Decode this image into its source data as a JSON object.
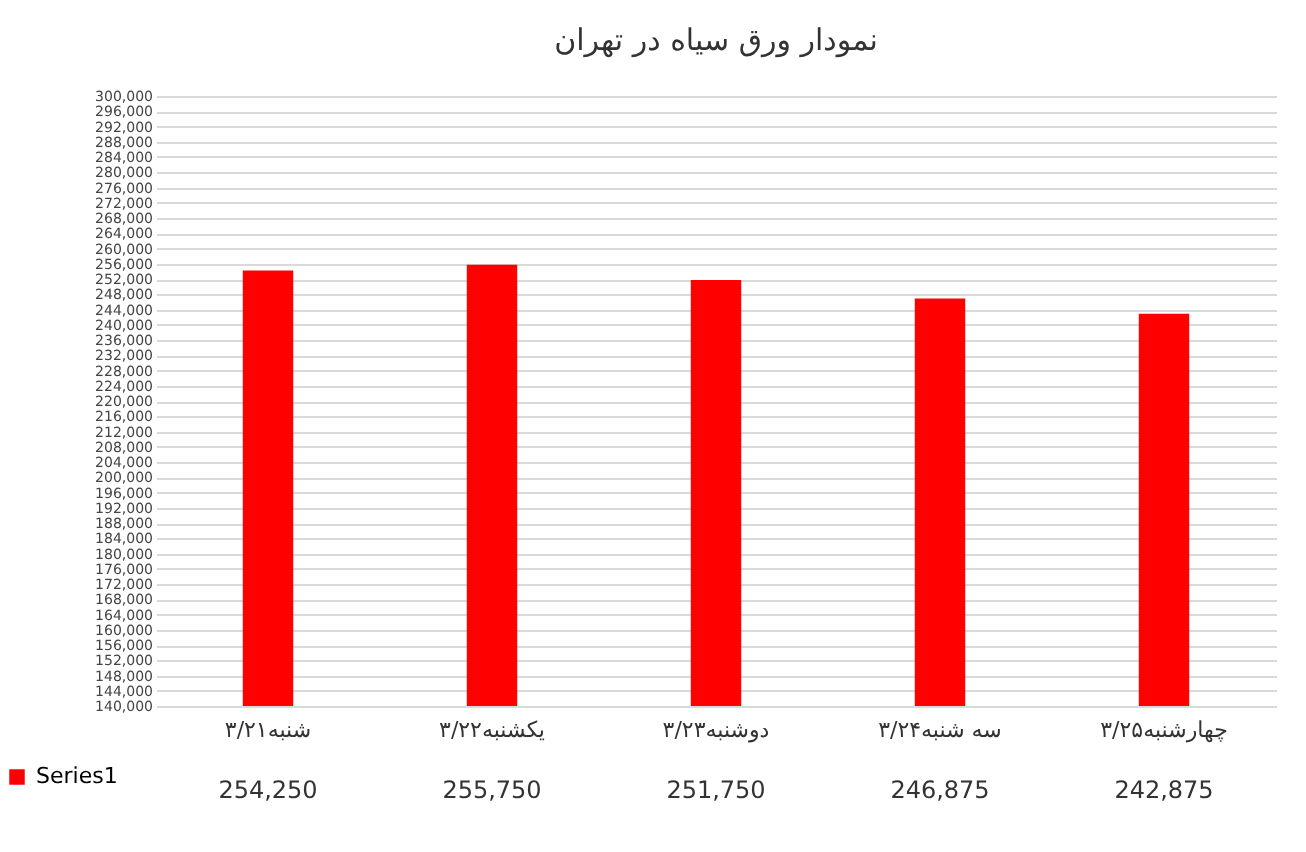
{
  "chart_data": {
    "type": "bar",
    "title": "نمودار ورق سیاه در تهران",
    "categories": [
      "شنبه۳/۲۱",
      "یکشنبه۳/۲۲",
      "دوشنبه۳/۲۳",
      "سه شنبه۳/۲۴",
      "چهارشنبه۳/۲۵"
    ],
    "series": [
      {
        "name": "Series1",
        "color": "#ff0000",
        "values": [
          254250,
          255750,
          251750,
          246875,
          242875
        ],
        "value_labels": [
          "254,250",
          "255,750",
          "251,750",
          "246,875",
          "242,875"
        ]
      }
    ],
    "ylim": [
      140000,
      300000
    ],
    "yticks": [
      {
        "value": 140000,
        "label": "140,000"
      },
      {
        "value": 144000,
        "label": "144,000"
      },
      {
        "value": 148000,
        "label": "148,000"
      },
      {
        "value": 152000,
        "label": "152,000"
      },
      {
        "value": 156000,
        "label": "156,000"
      },
      {
        "value": 160000,
        "label": "160,000"
      },
      {
        "value": 164000,
        "label": "164,000"
      },
      {
        "value": 168000,
        "label": "168,000"
      },
      {
        "value": 172000,
        "label": "172,000"
      },
      {
        "value": 176000,
        "label": "176,000"
      },
      {
        "value": 180000,
        "label": "180,000"
      },
      {
        "value": 184000,
        "label": "184,000"
      },
      {
        "value": 188000,
        "label": "188,000"
      },
      {
        "value": 192000,
        "label": "192,000"
      },
      {
        "value": 196000,
        "label": "196,000"
      },
      {
        "value": 200000,
        "label": "200,000"
      },
      {
        "value": 204000,
        "label": "204,000"
      },
      {
        "value": 208000,
        "label": "208,000"
      },
      {
        "value": 212000,
        "label": "212,000"
      },
      {
        "value": 216000,
        "label": "216,000"
      },
      {
        "value": 220000,
        "label": "220,000"
      },
      {
        "value": 224000,
        "label": "224,000"
      },
      {
        "value": 228000,
        "label": "228,000"
      },
      {
        "value": 232000,
        "label": "232,000"
      },
      {
        "value": 236000,
        "label": "236,000"
      },
      {
        "value": 240000,
        "label": "240,000"
      },
      {
        "value": 244000,
        "label": "244,000"
      },
      {
        "value": 248000,
        "label": "248,000"
      },
      {
        "value": 252000,
        "label": "252,000"
      },
      {
        "value": 256000,
        "label": "256,000"
      },
      {
        "value": 260000,
        "label": "260,000"
      },
      {
        "value": 264000,
        "label": "264,000"
      },
      {
        "value": 268000,
        "label": "268,000"
      },
      {
        "value": 272000,
        "label": "272,000"
      },
      {
        "value": 276000,
        "label": "276,000"
      },
      {
        "value": 280000,
        "label": "280,000"
      },
      {
        "value": 284000,
        "label": "284,000"
      },
      {
        "value": 288000,
        "label": "288,000"
      },
      {
        "value": 292000,
        "label": "292,000"
      },
      {
        "value": 296000,
        "label": "296,000"
      },
      {
        "value": 300000,
        "label": "300,000"
      }
    ],
    "grid": "y",
    "legend": "bottom left"
  }
}
